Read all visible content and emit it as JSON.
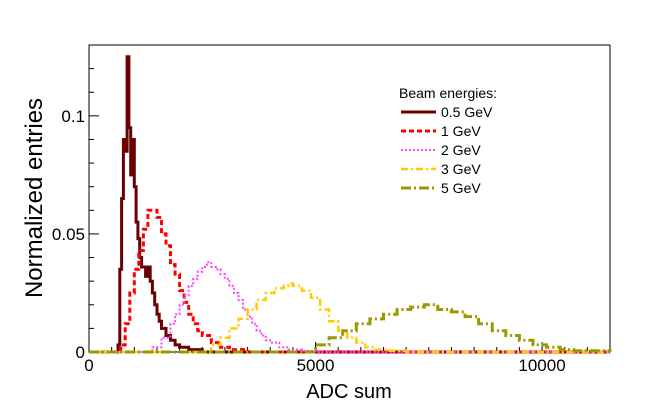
{
  "chart_data": {
    "type": "line",
    "title": "",
    "xlabel": "ADC sum",
    "ylabel": "Normalized entries",
    "xlim": [
      0,
      11500
    ],
    "ylim": [
      0,
      0.13
    ],
    "xticks": [
      0,
      5000,
      10000
    ],
    "xtick_labels": [
      "0",
      "5000",
      "10000"
    ],
    "yticks": [
      0,
      0.05,
      0.1
    ],
    "ytick_labels": [
      "0",
      "0.05",
      "0.1"
    ],
    "grid": false,
    "legend": {
      "title": "Beam energies:",
      "position": "top-right"
    },
    "series": [
      {
        "name": "0.5 GeV",
        "color": "#6b0000",
        "style": "solid",
        "x": [
          0,
          400,
          600,
          640,
          680,
          720,
          760,
          800,
          840,
          880,
          920,
          960,
          1000,
          1040,
          1080,
          1120,
          1160,
          1200,
          1250,
          1300,
          1350,
          1400,
          1450,
          1500,
          1550,
          1600,
          1700,
          1800,
          1900,
          2000,
          2200,
          2500,
          11500
        ],
        "y": [
          0,
          0,
          0,
          0.003,
          0.035,
          0.065,
          0.09,
          0.085,
          0.125,
          0.095,
          0.075,
          0.09,
          0.07,
          0.055,
          0.048,
          0.04,
          0.036,
          0.036,
          0.032,
          0.036,
          0.03,
          0.025,
          0.02,
          0.016,
          0.013,
          0.01,
          0.007,
          0.005,
          0.003,
          0.002,
          0.001,
          0,
          0
        ]
      },
      {
        "name": "1 GeV",
        "color": "#ff0000",
        "style": "dashed",
        "x": [
          0,
          600,
          700,
          800,
          900,
          1000,
          1100,
          1200,
          1300,
          1400,
          1500,
          1600,
          1700,
          1800,
          1900,
          2000,
          2100,
          2200,
          2300,
          2400,
          2500,
          2700,
          2900,
          3100,
          3500,
          11500
        ],
        "y": [
          0,
          0,
          0.003,
          0.012,
          0.025,
          0.035,
          0.043,
          0.052,
          0.06,
          0.06,
          0.057,
          0.05,
          0.045,
          0.037,
          0.033,
          0.026,
          0.021,
          0.016,
          0.012,
          0.009,
          0.007,
          0.004,
          0.002,
          0.001,
          0,
          0
        ]
      },
      {
        "name": "2 GeV",
        "color": "#ff44ff",
        "style": "dotted",
        "x": [
          0,
          1200,
          1400,
          1600,
          1800,
          1900,
          2000,
          2100,
          2200,
          2300,
          2400,
          2500,
          2600,
          2700,
          2800,
          2900,
          3000,
          3100,
          3200,
          3300,
          3400,
          3500,
          3600,
          3700,
          3800,
          3900,
          4000,
          4200,
          4400,
          4700,
          5000,
          11500
        ],
        "y": [
          0,
          0,
          0.002,
          0.006,
          0.012,
          0.016,
          0.02,
          0.024,
          0.028,
          0.031,
          0.034,
          0.036,
          0.038,
          0.036,
          0.035,
          0.033,
          0.031,
          0.028,
          0.025,
          0.022,
          0.018,
          0.015,
          0.012,
          0.009,
          0.007,
          0.005,
          0.004,
          0.002,
          0.001,
          0.0005,
          0,
          0
        ]
      },
      {
        "name": "3 GeV",
        "color": "#ffcc00",
        "style": "dashdot",
        "x": [
          0,
          2400,
          2700,
          2900,
          3100,
          3300,
          3500,
          3700,
          3900,
          4100,
          4300,
          4400,
          4500,
          4700,
          4900,
          5100,
          5300,
          5500,
          5700,
          5900,
          6100,
          6300,
          6600,
          7000,
          11500
        ],
        "y": [
          0,
          0,
          0.003,
          0.006,
          0.01,
          0.014,
          0.018,
          0.022,
          0.025,
          0.027,
          0.028,
          0.029,
          0.028,
          0.026,
          0.023,
          0.018,
          0.013,
          0.009,
          0.006,
          0.004,
          0.002,
          0.001,
          0.0005,
          0,
          0
        ]
      },
      {
        "name": "5 GeV",
        "color": "#999900",
        "style": "dashdotlong",
        "x": [
          0,
          4500,
          5000,
          5300,
          5600,
          5900,
          6200,
          6500,
          6800,
          7100,
          7400,
          7700,
          8000,
          8300,
          8600,
          8900,
          9200,
          9500,
          9800,
          10100,
          10400,
          10700,
          11500
        ],
        "y": [
          0,
          0,
          0.003,
          0.006,
          0.009,
          0.012,
          0.014,
          0.016,
          0.018,
          0.019,
          0.02,
          0.018,
          0.017,
          0.015,
          0.012,
          0.009,
          0.007,
          0.005,
          0.003,
          0.002,
          0.001,
          0.0005,
          0
        ]
      }
    ]
  }
}
